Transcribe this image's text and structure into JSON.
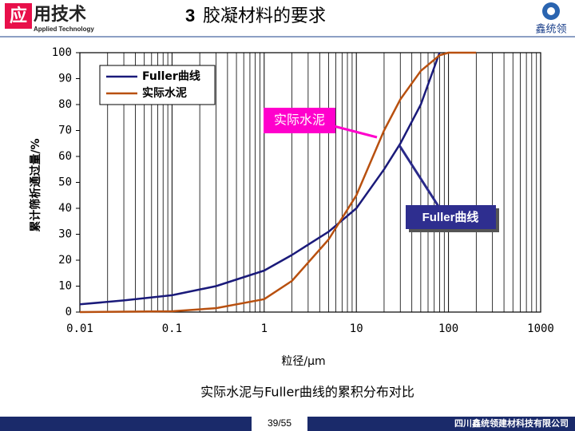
{
  "header": {
    "logo_char": "应",
    "logo_text": "用技术",
    "logo_sub": "Applied Technology",
    "section": "3",
    "title": "胶凝材料的要求",
    "brand": "鑫统领"
  },
  "chart_data": {
    "type": "line",
    "log_x": true,
    "xlabel": "粒径/μm",
    "ylabel": "累计筛析通过量/%",
    "xlim": [
      0.01,
      1000
    ],
    "xticks": [
      0.01,
      0.1,
      1,
      10,
      100,
      1000
    ],
    "ylim": [
      0,
      100
    ],
    "yticks": [
      0,
      10,
      20,
      30,
      40,
      50,
      60,
      70,
      80,
      90,
      100
    ],
    "grid": "x",
    "legend": "upper left",
    "series": [
      {
        "name": "Fuller曲线",
        "color": "#1a1a7a",
        "x": [
          0.01,
          0.03,
          0.1,
          0.3,
          1,
          2,
          5,
          10,
          20,
          30,
          50,
          80
        ],
        "values": [
          3,
          4.5,
          6.5,
          10,
          16,
          22,
          31,
          40,
          55,
          65,
          80,
          100
        ]
      },
      {
        "name": "实际水泥",
        "color": "#b8500f",
        "x": [
          0.01,
          0.1,
          0.3,
          0.5,
          1,
          2,
          5,
          10,
          20,
          30,
          50,
          80,
          100,
          200
        ],
        "values": [
          0,
          0.3,
          1.5,
          3,
          5,
          12,
          28,
          45,
          70,
          82,
          93,
          99,
          100,
          100
        ]
      }
    ],
    "annotations": [
      "实际水泥",
      "Fuller曲线"
    ]
  },
  "caption": "实际水泥与Fuller曲线的累积分布对比",
  "footer": {
    "page": "39/55",
    "company": "四川鑫统领建材科技有限公司"
  }
}
